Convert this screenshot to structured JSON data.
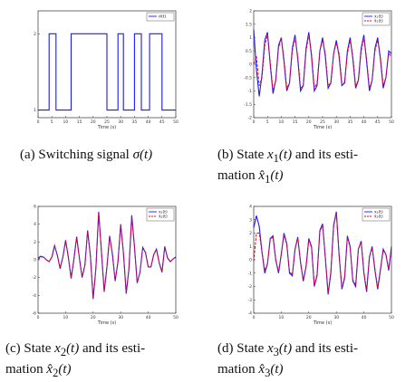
{
  "captions": {
    "a": {
      "label": "(a) Switching signal ",
      "math": "σ(t)"
    },
    "b": {
      "label": "(b) State ",
      "math1": "x",
      "sub1": "1",
      "arg1": "(t)",
      "mid": " and its esti-",
      "line2": "mation ",
      "math2": "x̂",
      "sub2": "1",
      "arg2": "(t)"
    },
    "c": {
      "label": "(c) State ",
      "math1": "x",
      "sub1": "2",
      "arg1": "(t)",
      "mid": " and its esti-",
      "line2": "mation ",
      "math2": "x̂",
      "sub2": "2",
      "arg2": "(t)"
    },
    "d": {
      "label": "(d) State ",
      "math1": "x",
      "sub1": "3",
      "arg1": "(t)",
      "mid": " and its esti-",
      "line2": "mation ",
      "math2": "x̂",
      "sub2": "3",
      "arg2": "(t)"
    }
  },
  "colors": {
    "true": "#1a1aff",
    "estimate": "#e8002a",
    "axis": "#333333"
  },
  "chart_data": [
    {
      "id": "a",
      "type": "line",
      "xlabel": "Time (s)",
      "xlim": [
        0,
        50
      ],
      "ylim": [
        0.9,
        2.3
      ],
      "xticks": [
        0,
        5,
        10,
        15,
        20,
        25,
        30,
        35,
        40,
        45,
        50
      ],
      "yticks": [
        1,
        2
      ],
      "legend": [
        "σ(t)"
      ],
      "legend_position": "top-right",
      "series": [
        {
          "name": "σ(t)",
          "style": "step",
          "x": [
            0,
            4,
            4,
            6.5,
            6.5,
            12,
            12,
            19,
            19,
            25,
            25,
            29,
            29,
            31,
            31,
            35,
            35,
            37.5,
            37.5,
            40.5,
            40.5,
            45,
            45,
            50
          ],
          "y": [
            1,
            1,
            2,
            2,
            1,
            1,
            2,
            2,
            2,
            2,
            1,
            1,
            2,
            2,
            1,
            1,
            2,
            2,
            1,
            1,
            2,
            2,
            1,
            1
          ]
        }
      ]
    },
    {
      "id": "b",
      "type": "line",
      "xlabel": "Time (s)",
      "xlim": [
        0,
        50
      ],
      "ylim": [
        -2,
        2
      ],
      "xticks": [
        0,
        5,
        10,
        15,
        20,
        25,
        30,
        35,
        40,
        45,
        50
      ],
      "yticks": [
        -2,
        -1.5,
        -1,
        -0.5,
        0,
        0.5,
        1,
        1.5,
        2
      ],
      "ytick_labels": [
        "-2",
        "-1.5",
        "-1",
        "-0.5",
        "0",
        "0.5",
        "1",
        "1.5",
        "2"
      ],
      "legend": [
        "x₁(t)",
        "x̂₁(t)"
      ],
      "legend_position": "top-right",
      "series": [
        {
          "name": "x₁(t)",
          "x": [
            0,
            1,
            2,
            3,
            4,
            5,
            6,
            7,
            8,
            9,
            10,
            11,
            12,
            13,
            14,
            15,
            16,
            17,
            18,
            19,
            20,
            21,
            22,
            23,
            24,
            25,
            26,
            27,
            28,
            29,
            30,
            31,
            32,
            33,
            34,
            35,
            36,
            37,
            38,
            39,
            40,
            41,
            42,
            43,
            44,
            45,
            46,
            47,
            48,
            49,
            50
          ],
          "y": [
            1.3,
            -0.2,
            -1.2,
            -0.4,
            0.9,
            1.2,
            0.0,
            -1.1,
            -0.6,
            0.7,
            1.0,
            0.1,
            -1.0,
            -0.7,
            0.6,
            1.1,
            0.2,
            -1.0,
            -0.8,
            0.6,
            1.2,
            0.3,
            -1.0,
            -0.8,
            0.5,
            1.0,
            0.3,
            -0.9,
            -0.7,
            0.4,
            0.9,
            0.3,
            -0.8,
            -0.7,
            0.5,
            1.0,
            0.2,
            -0.9,
            -0.6,
            0.6,
            1.1,
            0.1,
            -1.0,
            -0.6,
            0.6,
            1.0,
            0.2,
            -0.9,
            -0.5,
            0.5,
            0.4
          ]
        },
        {
          "name": "x̂₁(t)",
          "x": [
            0,
            1,
            2,
            3,
            4,
            5,
            6,
            7,
            8,
            9,
            10,
            11,
            12,
            13,
            14,
            15,
            16,
            17,
            18,
            19,
            20,
            21,
            22,
            23,
            24,
            25,
            26,
            27,
            28,
            29,
            30,
            31,
            32,
            33,
            34,
            35,
            36,
            37,
            38,
            39,
            40,
            41,
            42,
            43,
            44,
            45,
            46,
            47,
            48,
            49,
            50
          ],
          "y": [
            0.0,
            0.3,
            -0.8,
            -0.5,
            0.7,
            1.1,
            0.1,
            -1.0,
            -0.6,
            0.6,
            1.0,
            0.2,
            -0.9,
            -0.7,
            0.5,
            1.0,
            0.3,
            -0.9,
            -0.8,
            0.5,
            1.1,
            0.4,
            -0.9,
            -0.7,
            0.5,
            0.9,
            0.4,
            -0.8,
            -0.7,
            0.4,
            0.8,
            0.4,
            -0.7,
            -0.7,
            0.4,
            0.9,
            0.3,
            -0.8,
            -0.6,
            0.5,
            1.0,
            0.2,
            -0.9,
            -0.6,
            0.5,
            0.9,
            0.3,
            -0.8,
            -0.5,
            0.4,
            0.3
          ]
        }
      ]
    },
    {
      "id": "c",
      "type": "line",
      "xlabel": "Time (s)",
      "xlim": [
        0,
        50
      ],
      "ylim": [
        -6,
        6
      ],
      "xticks": [
        0,
        10,
        20,
        30,
        40,
        50
      ],
      "yticks": [
        -6,
        -4,
        -2,
        0,
        2,
        4,
        6
      ],
      "legend": [
        "x₂(t)",
        "x̂₂(t)"
      ],
      "legend_position": "top-right",
      "series": [
        {
          "name": "x₂(t)",
          "x": [
            0,
            1,
            2,
            3,
            4,
            5,
            6,
            7,
            8,
            9,
            10,
            11,
            12,
            13,
            14,
            15,
            16,
            17,
            18,
            19,
            20,
            21,
            22,
            23,
            24,
            25,
            26,
            27,
            28,
            29,
            30,
            31,
            32,
            33,
            34,
            35,
            36,
            37,
            38,
            39,
            40,
            41,
            42,
            43,
            44,
            45,
            46,
            47,
            48,
            49,
            50
          ],
          "y": [
            0.2,
            0.4,
            0.3,
            0.0,
            -0.2,
            0.3,
            1.6,
            0.5,
            -1.0,
            0.3,
            2.2,
            0.3,
            -2.1,
            0.0,
            2.6,
            0.2,
            -2.0,
            -0.6,
            3.3,
            0.4,
            -4.4,
            -1.0,
            5.4,
            1.0,
            -3.6,
            -0.8,
            2.7,
            0.6,
            -2.4,
            -0.2,
            4.0,
            0.8,
            -3.8,
            -1.0,
            5.0,
            1.5,
            -2.6,
            -1.4,
            1.4,
            0.8,
            -0.8,
            -0.8,
            0.6,
            1.2,
            -0.4,
            -1.4,
            1.5,
            0.2,
            -0.2,
            0.1,
            0.3
          ]
        },
        {
          "name": "x̂₂(t)",
          "x": [
            0,
            1,
            2,
            3,
            4,
            5,
            6,
            7,
            8,
            9,
            10,
            11,
            12,
            13,
            14,
            15,
            16,
            17,
            18,
            19,
            20,
            21,
            22,
            23,
            24,
            25,
            26,
            27,
            28,
            29,
            30,
            31,
            32,
            33,
            34,
            35,
            36,
            37,
            38,
            39,
            40,
            41,
            42,
            43,
            44,
            45,
            46,
            47,
            48,
            49,
            50
          ],
          "y": [
            0.0,
            0.3,
            0.3,
            0.0,
            -0.2,
            0.3,
            1.5,
            0.5,
            -0.9,
            0.3,
            2.1,
            0.3,
            -2.0,
            0.0,
            2.5,
            0.2,
            -1.9,
            -0.6,
            3.2,
            0.4,
            -4.3,
            -1.0,
            5.3,
            1.0,
            -3.5,
            -0.8,
            2.6,
            0.6,
            -2.3,
            -0.2,
            3.9,
            0.8,
            -3.7,
            -1.0,
            4.9,
            1.4,
            -2.5,
            -1.4,
            1.3,
            0.8,
            -0.8,
            -0.8,
            0.6,
            1.1,
            -0.4,
            -1.3,
            1.4,
            0.2,
            -0.2,
            0.1,
            0.3
          ]
        }
      ]
    },
    {
      "id": "d",
      "type": "line",
      "xlabel": "Time (s)",
      "xlim": [
        0,
        50
      ],
      "ylim": [
        -4,
        4
      ],
      "xticks": [
        0,
        10,
        20,
        30,
        40,
        50
      ],
      "yticks": [
        -4,
        -3,
        -2,
        -1,
        0,
        1,
        2,
        3,
        4
      ],
      "legend": [
        "x₃(t)",
        "x̂₃(t)"
      ],
      "legend_position": "top-right",
      "series": [
        {
          "name": "x₃(t)",
          "x": [
            0,
            1,
            2,
            3,
            4,
            5,
            6,
            7,
            8,
            9,
            10,
            11,
            12,
            13,
            14,
            15,
            16,
            17,
            18,
            19,
            20,
            21,
            22,
            23,
            24,
            25,
            26,
            27,
            28,
            29,
            30,
            31,
            32,
            33,
            34,
            35,
            36,
            37,
            38,
            39,
            40,
            41,
            42,
            43,
            44,
            45,
            46,
            47,
            48,
            49,
            50
          ],
          "y": [
            2.4,
            3.3,
            2.5,
            0.6,
            -1.0,
            -0.3,
            1.6,
            1.8,
            0.0,
            -1.0,
            0.4,
            2.0,
            1.2,
            -1.0,
            -1.2,
            0.8,
            1.7,
            -0.2,
            -1.6,
            -0.5,
            1.6,
            1.0,
            -2.0,
            -1.2,
            2.2,
            2.7,
            0.2,
            -2.6,
            -1.0,
            2.6,
            3.6,
            0.4,
            -2.2,
            -1.4,
            1.8,
            1.0,
            -1.6,
            -2.0,
            0.8,
            1.4,
            -1.0,
            -2.4,
            0.2,
            1.0,
            -0.8,
            -2.2,
            -0.8,
            0.8,
            0.4,
            -0.8,
            1.0
          ]
        },
        {
          "name": "x̂₃(t)",
          "x": [
            0,
            1,
            2,
            3,
            4,
            5,
            6,
            7,
            8,
            9,
            10,
            11,
            12,
            13,
            14,
            15,
            16,
            17,
            18,
            19,
            20,
            21,
            22,
            23,
            24,
            25,
            26,
            27,
            28,
            29,
            30,
            31,
            32,
            33,
            34,
            35,
            36,
            37,
            38,
            39,
            40,
            41,
            42,
            43,
            44,
            45,
            46,
            47,
            48,
            49,
            50
          ],
          "y": [
            -0.1,
            2.0,
            2.0,
            0.6,
            -0.8,
            -0.3,
            1.5,
            1.7,
            0.0,
            -0.9,
            0.4,
            1.9,
            1.1,
            -0.9,
            -1.1,
            0.8,
            1.6,
            -0.2,
            -1.5,
            -0.5,
            1.5,
            0.9,
            -1.9,
            -1.1,
            2.1,
            2.6,
            0.2,
            -2.5,
            -0.9,
            2.5,
            3.5,
            0.4,
            -2.1,
            -1.3,
            1.7,
            0.9,
            -1.5,
            -1.9,
            0.8,
            1.3,
            -0.9,
            -2.3,
            0.2,
            0.9,
            -0.7,
            -2.1,
            -0.7,
            0.7,
            0.4,
            -0.7,
            0.9
          ]
        }
      ]
    }
  ]
}
